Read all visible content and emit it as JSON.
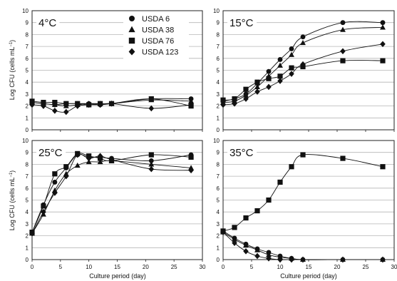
{
  "chart_data": [
    {
      "type": "scatter",
      "panel_label": "4°C",
      "xlim": [
        0,
        30
      ],
      "ylim": [
        0,
        10
      ],
      "x_ticks": [
        0,
        5,
        10,
        15,
        20,
        25,
        30
      ],
      "y_ticks": [
        0,
        1,
        2,
        3,
        4,
        5,
        6,
        7,
        8,
        9,
        10
      ],
      "grid": true,
      "legend_placement": "top-right",
      "series": [
        {
          "name": "USDA 6",
          "marker": "circle",
          "x": [
            0,
            2,
            4,
            6,
            8,
            10,
            12,
            14,
            21,
            28
          ],
          "y": [
            2.3,
            2.2,
            2.1,
            2.2,
            2.2,
            2.2,
            2.1,
            2.2,
            2.6,
            2.6
          ]
        },
        {
          "name": "USDA 38",
          "marker": "triangle",
          "x": [
            0,
            2,
            4,
            6,
            8,
            10,
            12,
            14,
            21,
            28
          ],
          "y": [
            2.3,
            2.2,
            2.1,
            2.0,
            2.1,
            2.2,
            2.2,
            2.2,
            2.5,
            2.4
          ]
        },
        {
          "name": "USDA 76",
          "marker": "square",
          "x": [
            0,
            2,
            4,
            6,
            8,
            10,
            12,
            14,
            21,
            28
          ],
          "y": [
            2.4,
            2.3,
            2.3,
            2.2,
            2.2,
            2.1,
            2.2,
            2.2,
            2.6,
            2.0
          ]
        },
        {
          "name": "USDA 123",
          "marker": "diamond",
          "x": [
            0,
            2,
            4,
            6,
            8,
            10,
            12,
            14,
            21,
            28
          ],
          "y": [
            2.1,
            2.0,
            1.6,
            1.5,
            2.0,
            2.1,
            2.1,
            2.2,
            1.8,
            2.1
          ]
        }
      ]
    },
    {
      "type": "scatter",
      "panel_label": "15°C",
      "xlim": [
        0,
        30
      ],
      "ylim": [
        0,
        10
      ],
      "x_ticks": [
        0,
        5,
        10,
        15,
        20,
        25,
        30
      ],
      "y_ticks": [
        0,
        1,
        2,
        3,
        4,
        5,
        6,
        7,
        8,
        9,
        10
      ],
      "grid": true,
      "series": [
        {
          "name": "USDA 6",
          "marker": "circle",
          "x": [
            0,
            2,
            4,
            6,
            8,
            10,
            12,
            14,
            21,
            28
          ],
          "y": [
            2.4,
            2.6,
            3.0,
            3.9,
            4.9,
            5.9,
            6.8,
            7.8,
            9.0,
            9.0
          ]
        },
        {
          "name": "USDA 38",
          "marker": "triangle",
          "x": [
            0,
            2,
            4,
            6,
            8,
            10,
            12,
            14,
            21,
            28
          ],
          "y": [
            2.3,
            2.4,
            2.9,
            3.6,
            4.5,
            5.4,
            6.3,
            7.3,
            8.4,
            8.6
          ]
        },
        {
          "name": "USDA 76",
          "marker": "square",
          "x": [
            0,
            2,
            4,
            6,
            8,
            10,
            12,
            14,
            21,
            28
          ],
          "y": [
            2.5,
            2.6,
            3.4,
            4.0,
            4.3,
            4.5,
            5.2,
            5.3,
            5.8,
            5.8
          ]
        },
        {
          "name": "USDA 123",
          "marker": "diamond",
          "x": [
            0,
            2,
            4,
            6,
            8,
            10,
            12,
            14,
            21,
            28
          ],
          "y": [
            2.1,
            2.2,
            2.6,
            3.2,
            3.6,
            4.1,
            4.7,
            5.5,
            6.6,
            7.2
          ]
        }
      ]
    },
    {
      "type": "scatter",
      "panel_label": "25°C",
      "xlim": [
        0,
        30
      ],
      "ylim": [
        0,
        10
      ],
      "x_ticks": [
        0,
        5,
        10,
        15,
        20,
        25,
        30
      ],
      "y_ticks": [
        0,
        1,
        2,
        3,
        4,
        5,
        6,
        7,
        8,
        9,
        10
      ],
      "grid": true,
      "series": [
        {
          "name": "USDA 6",
          "marker": "circle",
          "x": [
            0,
            2,
            4,
            6,
            8,
            10,
            12,
            14,
            21,
            28
          ],
          "y": [
            2.3,
            4.6,
            6.5,
            7.7,
            8.8,
            8.6,
            8.6,
            8.5,
            8.3,
            8.8
          ]
        },
        {
          "name": "USDA 38",
          "marker": "triangle",
          "x": [
            0,
            2,
            4,
            6,
            8,
            10,
            12,
            14,
            21,
            28
          ],
          "y": [
            2.2,
            3.8,
            5.8,
            7.2,
            7.9,
            8.2,
            8.2,
            8.3,
            8.0,
            7.7
          ]
        },
        {
          "name": "USDA 76",
          "marker": "square",
          "x": [
            0,
            2,
            4,
            6,
            8,
            10,
            12,
            14,
            21,
            28
          ],
          "y": [
            2.3,
            4.5,
            7.2,
            7.8,
            8.9,
            8.7,
            8.5,
            8.3,
            8.8,
            8.6
          ]
        },
        {
          "name": "USDA 123",
          "marker": "diamond",
          "x": [
            0,
            2,
            4,
            6,
            8,
            10,
            12,
            14,
            21,
            28
          ],
          "y": [
            2.2,
            4.0,
            5.6,
            7.0,
            8.8,
            8.5,
            8.7,
            8.4,
            7.6,
            7.5
          ]
        }
      ]
    },
    {
      "type": "scatter",
      "panel_label": "35°C",
      "xlim": [
        0,
        30
      ],
      "ylim": [
        0,
        10
      ],
      "x_ticks": [
        0,
        5,
        10,
        15,
        20,
        25,
        30
      ],
      "y_ticks": [
        0,
        1,
        2,
        3,
        4,
        5,
        6,
        7,
        8,
        9,
        10
      ],
      "grid": true,
      "series": [
        {
          "name": "USDA 6",
          "marker": "circle",
          "x": [
            0,
            2,
            4,
            6,
            8,
            10,
            12,
            14,
            21,
            28
          ],
          "y": [
            2.4,
            1.8,
            1.3,
            0.9,
            0.6,
            0.3,
            0.1,
            0.0,
            0.0,
            0.0
          ]
        },
        {
          "name": "USDA 38",
          "marker": "triangle",
          "x": [
            0,
            2,
            4,
            6,
            8,
            10,
            12,
            14,
            21,
            28
          ],
          "y": [
            2.3,
            1.7,
            1.2,
            0.8,
            0.4,
            0.2,
            0.1,
            0.0,
            0.0,
            0.0
          ]
        },
        {
          "name": "USDA 76",
          "marker": "square",
          "x": [
            0,
            2,
            4,
            6,
            8,
            10,
            12,
            14,
            21,
            28
          ],
          "y": [
            2.4,
            2.7,
            3.5,
            4.1,
            5.0,
            6.5,
            7.8,
            8.8,
            8.5,
            7.8
          ]
        },
        {
          "name": "USDA 123",
          "marker": "diamond",
          "x": [
            0,
            2,
            4,
            6,
            8,
            10,
            12,
            14,
            21,
            28
          ],
          "y": [
            2.3,
            1.4,
            0.7,
            0.3,
            0.1,
            0.0,
            0.0,
            0.0,
            0.0,
            0.0
          ]
        }
      ]
    }
  ],
  "axes_text": {
    "xlabel": "Culture period (day)",
    "ylabel_main": "Log CFU (cells mL",
    "ylabel_sup": "−1",
    "ylabel_close": ")"
  },
  "legend": {
    "entries": [
      {
        "label": "USDA 6",
        "marker": "circle"
      },
      {
        "label": "USDA 38",
        "marker": "triangle"
      },
      {
        "label": "USDA 76",
        "marker": "square"
      },
      {
        "label": "USDA 123",
        "marker": "diamond"
      }
    ]
  }
}
